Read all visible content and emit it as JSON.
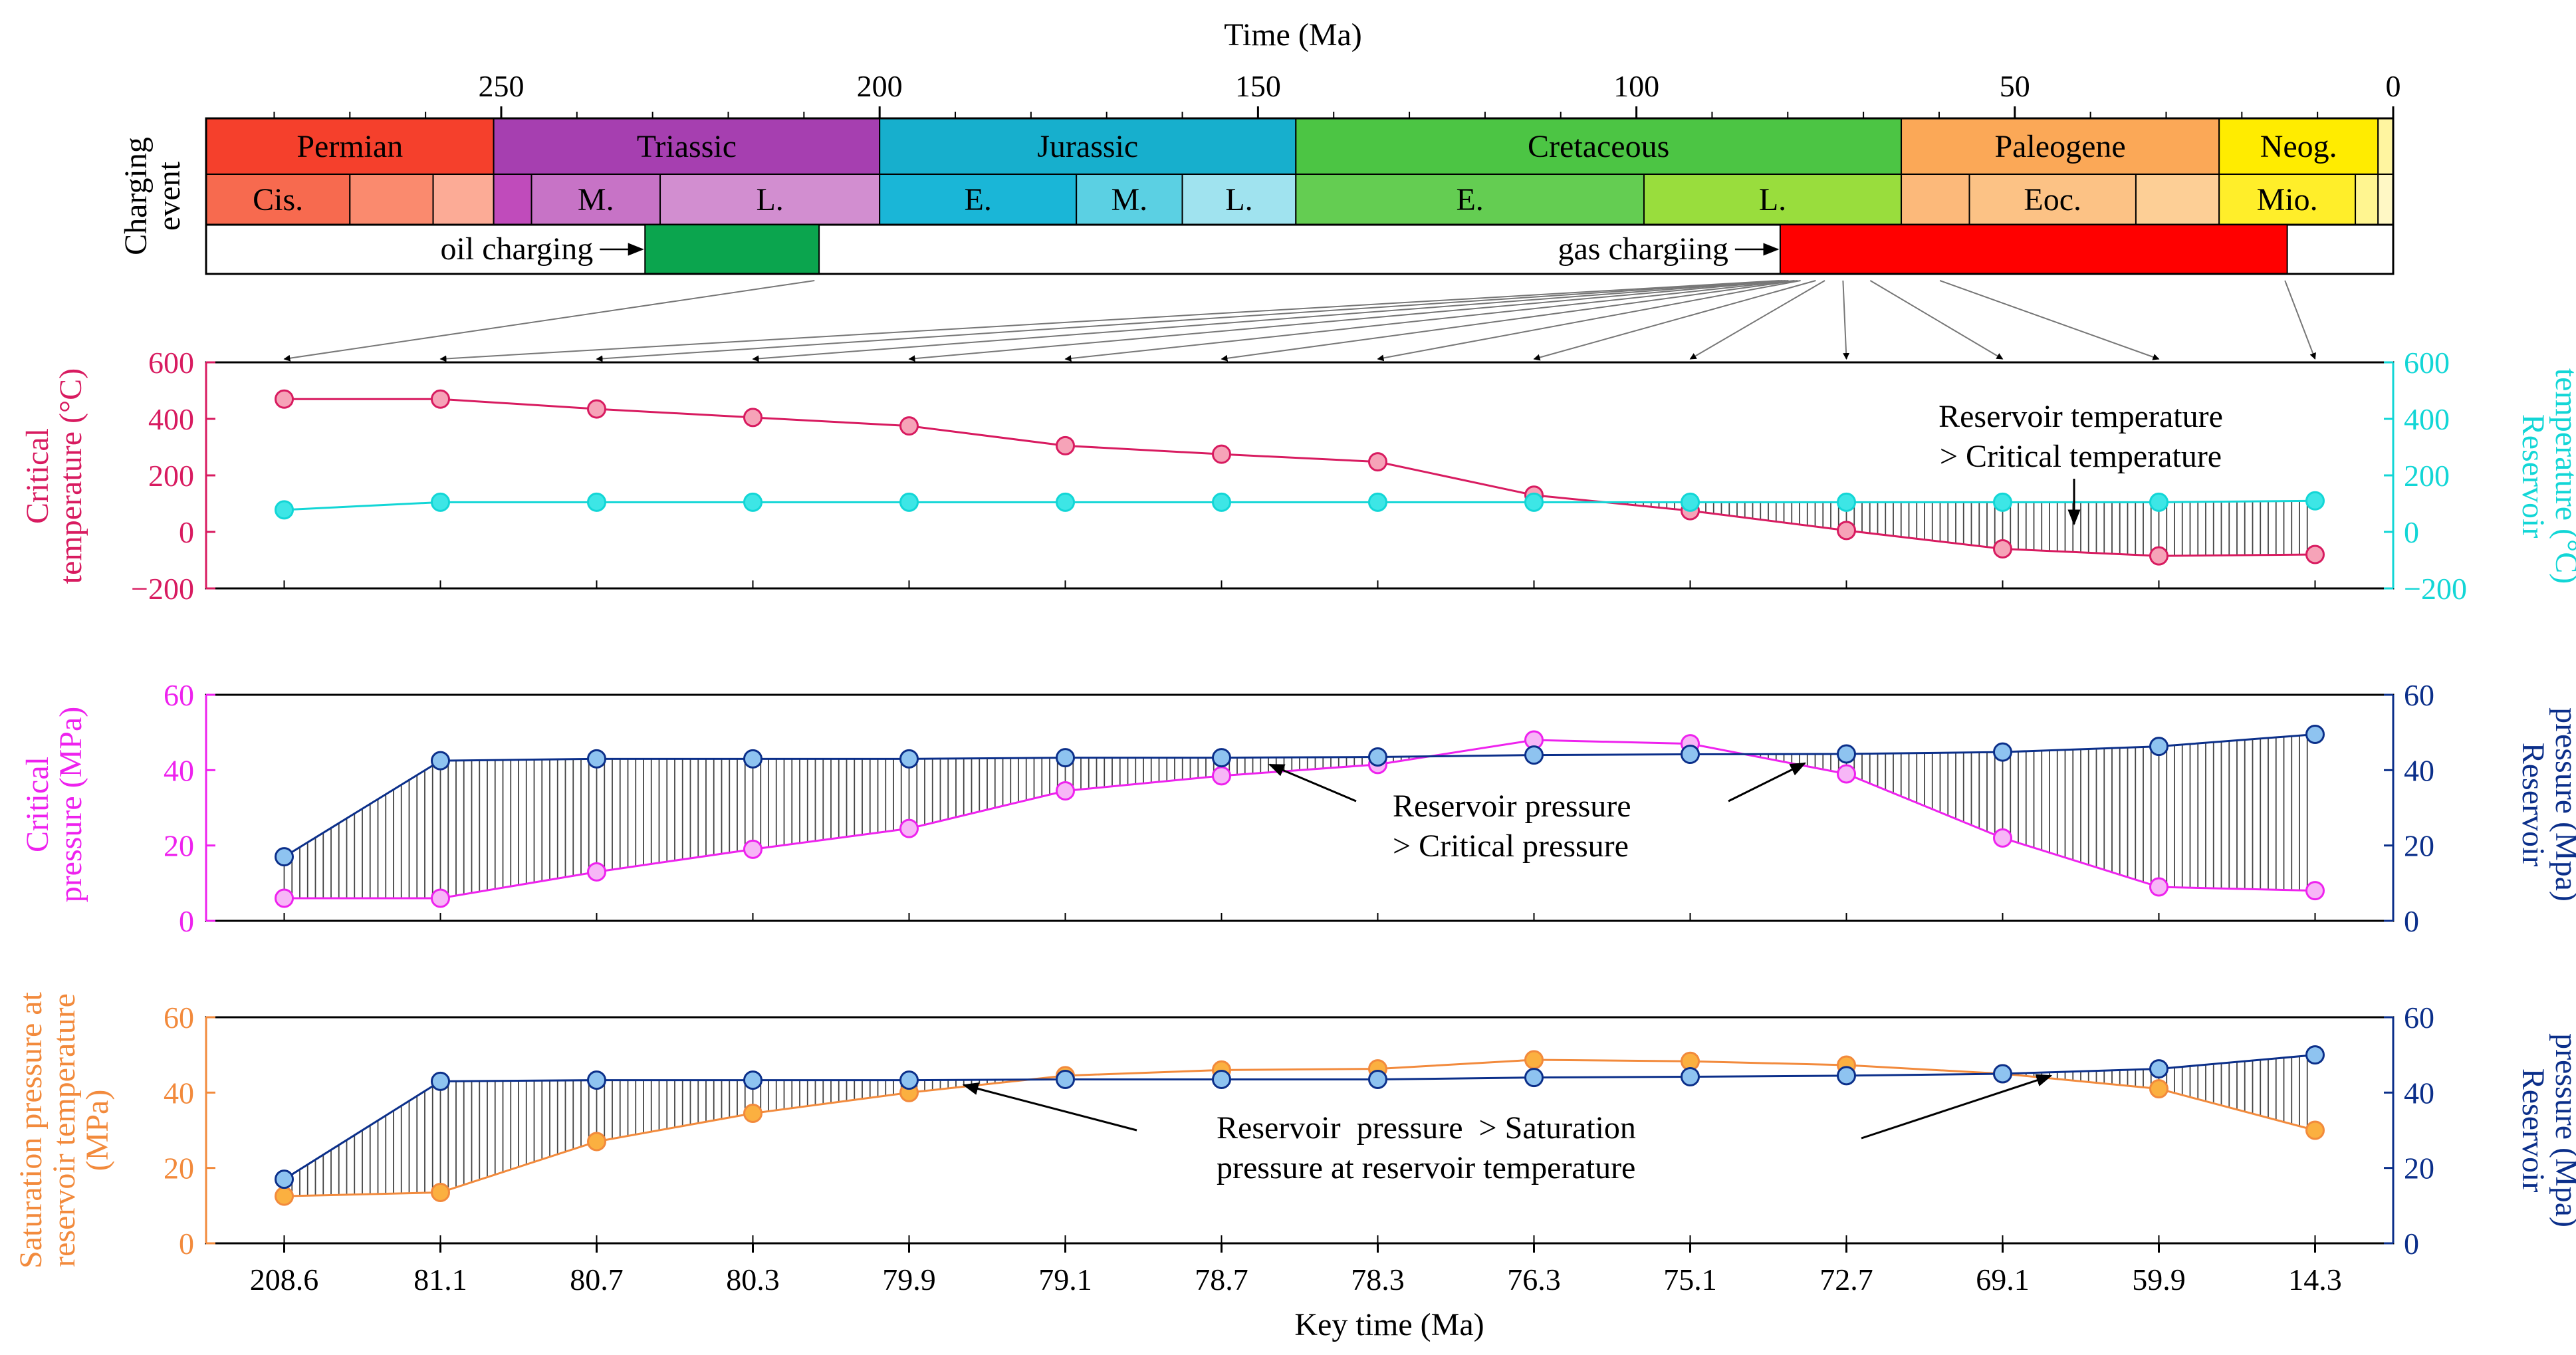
{
  "colors": {
    "critical_temperature": "#d81b60",
    "reservoir_temperature": "#12d6d6",
    "critical_pressure": "#ee22ee",
    "reservoir_pressure": "#0b2f8a",
    "saturation_pressure": "#f28a3c",
    "oil_charging": "#0ba54e",
    "gas_charging": "#ff0000"
  },
  "timescale": {
    "axis_title": "Time (Ma)",
    "ticks": [
      "250",
      "200",
      "150",
      "100",
      "50",
      "0"
    ],
    "row_label_1": "Charging",
    "row_label_2": "event",
    "periods": [
      {
        "label": "Permian",
        "start": 289,
        "end": 251,
        "color": "#f5402c"
      },
      {
        "label": "Triassic",
        "start": 251,
        "end": 200,
        "color": "#a63fb0"
      },
      {
        "label": "Jurassic",
        "start": 200,
        "end": 145,
        "color": "#17afcd"
      },
      {
        "label": "Cretaceous",
        "start": 145,
        "end": 65,
        "color": "#4cc544"
      },
      {
        "label": "Paleogene",
        "start": 65,
        "end": 23,
        "color": "#fba857"
      },
      {
        "label": "Neog.",
        "start": 23,
        "end": 2,
        "color": "#ffec00"
      },
      {
        "label": "",
        "start": 2,
        "end": 0,
        "color": "#fff5a0"
      }
    ],
    "epochs": [
      {
        "label": "Cis.",
        "start": 289,
        "end": 270,
        "color": "#f76a4f"
      },
      {
        "label": "",
        "start": 270,
        "end": 259,
        "color": "#fa8a6e"
      },
      {
        "label": "",
        "start": 259,
        "end": 251,
        "color": "#fcab96"
      },
      {
        "label": "",
        "start": 251,
        "end": 246,
        "color": "#c04bbb"
      },
      {
        "label": "M.",
        "start": 246,
        "end": 229,
        "color": "#c773c6"
      },
      {
        "label": "L.",
        "start": 229,
        "end": 200,
        "color": "#d28ed0"
      },
      {
        "label": "E.",
        "start": 200,
        "end": 174,
        "color": "#1ab6d7"
      },
      {
        "label": "M.",
        "start": 174,
        "end": 160,
        "color": "#5bd0e3"
      },
      {
        "label": "L.",
        "start": 160,
        "end": 145,
        "color": "#a0e3ef"
      },
      {
        "label": "E.",
        "start": 145,
        "end": 99,
        "color": "#64cd52"
      },
      {
        "label": "L.",
        "start": 99,
        "end": 65,
        "color": "#99dd3d"
      },
      {
        "label": "",
        "start": 65,
        "end": 56,
        "color": "#fcb97a"
      },
      {
        "label": "Eoc.",
        "start": 56,
        "end": 34,
        "color": "#fcc285"
      },
      {
        "label": "",
        "start": 34,
        "end": 23,
        "color": "#fdcf96"
      },
      {
        "label": "Mio.",
        "start": 23,
        "end": 5,
        "color": "#ffee2a"
      },
      {
        "label": "",
        "start": 5,
        "end": 2,
        "color": "#fff590"
      },
      {
        "label": "",
        "start": 2,
        "end": 0,
        "color": "#fff8c5"
      }
    ],
    "events": [
      {
        "label": "oil charging",
        "start": 231,
        "end": 208,
        "color": "#0ba54e"
      },
      {
        "label": "gas chargiing",
        "start": 81,
        "end": 14,
        "color": "#ff0000"
      }
    ]
  },
  "chart_data": [
    {
      "type": "line",
      "x_categories": [
        "208.6",
        "81.1",
        "80.7",
        "80.3",
        "79.9",
        "79.1",
        "78.7",
        "78.3",
        "76.3",
        "75.1",
        "72.7",
        "69.1",
        "59.9",
        "14.3"
      ],
      "ylim_left": [
        -200,
        600
      ],
      "ylim_right": [
        -200,
        600
      ],
      "yticks": [
        -200,
        0,
        200,
        400,
        600
      ],
      "ylabel_left": [
        "Critical",
        "temperature (°C)"
      ],
      "ylabel_right": [
        "Reservoir",
        "temperature (°C)"
      ],
      "annotation": [
        "Reservoir temperature",
        "> Critical temperature"
      ],
      "series": [
        {
          "name": "Critical temperature",
          "axis": "left",
          "values": [
            470,
            470,
            435,
            405,
            375,
            305,
            275,
            248,
            130,
            75,
            5,
            -60,
            -85,
            -80
          ]
        },
        {
          "name": "Reservoir temperature",
          "axis": "right",
          "values": [
            78,
            105,
            105,
            105,
            105,
            105,
            105,
            105,
            105,
            105,
            105,
            105,
            105,
            110
          ]
        }
      ]
    },
    {
      "type": "line",
      "ylim_left": [
        0,
        60
      ],
      "ylim_right": [
        0,
        60
      ],
      "yticks": [
        0,
        20,
        40,
        60
      ],
      "ylabel_left": [
        "Critical",
        "pressure (MPa)"
      ],
      "ylabel_right": [
        "Reservoir",
        "pressure (Mpa)"
      ],
      "annotation": [
        "Reservoir pressure",
        "> Critical pressure"
      ],
      "series": [
        {
          "name": "Critical pressure",
          "axis": "left",
          "values": [
            6,
            6,
            13,
            19,
            24.5,
            34.5,
            38.5,
            41.5,
            48,
            47,
            39,
            22,
            9,
            8
          ]
        },
        {
          "name": "Reservoir pressure",
          "axis": "right",
          "values": [
            17,
            42.5,
            43,
            43,
            43,
            43.3,
            43.3,
            43.5,
            44,
            44.2,
            44.3,
            44.8,
            46.3,
            49.5
          ]
        }
      ]
    },
    {
      "type": "line",
      "ylim_left": [
        0,
        60
      ],
      "ylim_right": [
        0,
        60
      ],
      "yticks": [
        0,
        20,
        40,
        60
      ],
      "ylabel_left": [
        "Saturation pressure at",
        "reservoir temperature",
        "(MPa)"
      ],
      "ylabel_right": [
        "Reservoir",
        "pressure (Mpa)"
      ],
      "annotation": [
        "Reservoir  pressure  > Saturation",
        "pressure at reservoir temperature"
      ],
      "xlabel": "Key time (Ma)",
      "series": [
        {
          "name": "Saturation pressure at reservoir temperature",
          "axis": "left",
          "values": [
            12.5,
            13.5,
            27,
            34.5,
            40,
            44.5,
            46,
            46.3,
            48.7,
            48.3,
            47.3,
            45,
            41,
            30
          ]
        },
        {
          "name": "Reservoir pressure",
          "axis": "right",
          "values": [
            17,
            43,
            43.3,
            43.3,
            43.3,
            43.5,
            43.5,
            43.5,
            44,
            44.2,
            44.5,
            45,
            46.3,
            50
          ]
        }
      ]
    }
  ]
}
